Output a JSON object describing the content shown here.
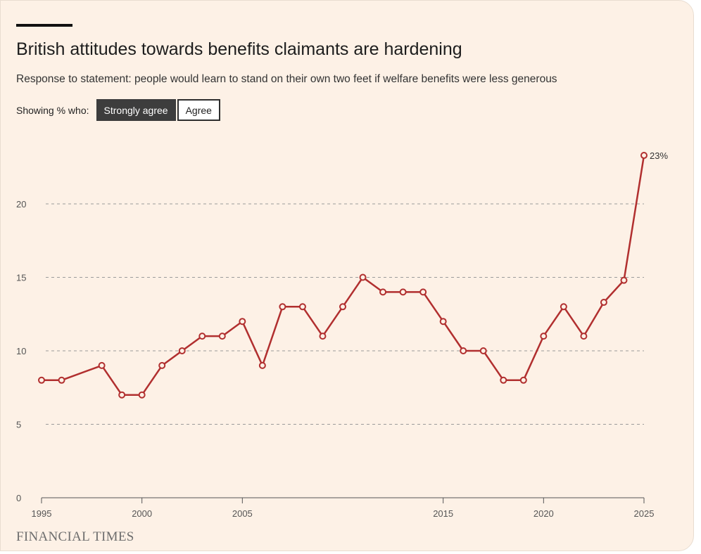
{
  "header": {
    "title": "British attitudes towards benefits claimants are hardening",
    "subtitle": "Response to statement: people would learn to stand on their own two feet if welfare benefits were less generous"
  },
  "toggle": {
    "label": "Showing % who:",
    "options": [
      "Strongly agree",
      "Agree"
    ],
    "selected": "Strongly agree"
  },
  "footer": {
    "source": "FINANCIAL TIMES"
  },
  "colors": {
    "series": "#b12f2f",
    "background": "#fdf1e6",
    "active_toggle": "#3d3d3d"
  },
  "chart_data": {
    "type": "line",
    "title": "British attitudes towards benefits claimants are hardening",
    "xlabel": "",
    "ylabel": "",
    "xlim": [
      1995,
      2025
    ],
    "ylim": [
      0,
      23
    ],
    "yticks": [
      0,
      5,
      10,
      15,
      20
    ],
    "xticks": [
      1995,
      2000,
      2005,
      2015,
      2020,
      2025
    ],
    "grid": true,
    "series": [
      {
        "name": "Strongly agree",
        "x": [
          1995,
          1996,
          1998,
          1999,
          2000,
          2001,
          2002,
          2003,
          2004,
          2005,
          2006,
          2007,
          2008,
          2009,
          2010,
          2011,
          2012,
          2013,
          2014,
          2015,
          2016,
          2017,
          2018,
          2019,
          2020,
          2021,
          2022,
          2023,
          2024,
          2025
        ],
        "y": [
          8,
          8,
          9,
          7,
          7,
          9,
          10,
          11,
          11,
          12,
          9,
          13,
          13,
          11,
          13,
          15,
          14,
          14,
          14,
          12,
          10,
          10,
          8,
          8,
          11,
          13,
          11,
          13.3,
          14.8,
          23.3
        ]
      }
    ],
    "annotations": [
      {
        "x": 2025,
        "text": "23%"
      }
    ]
  }
}
